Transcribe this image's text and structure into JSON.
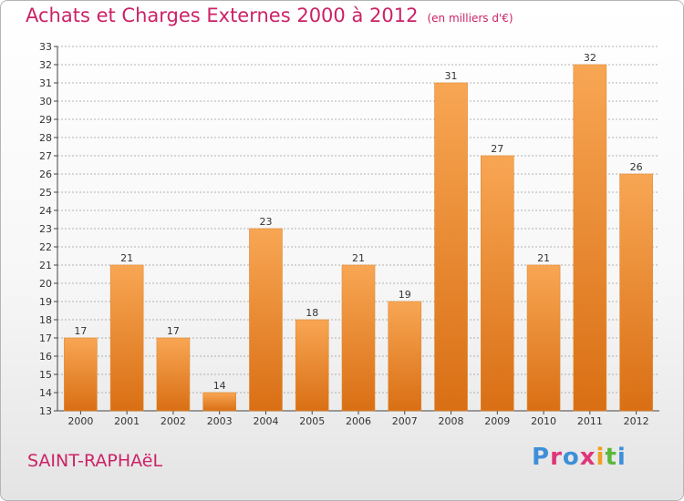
{
  "title": "Achats et Charges Externes 2000 à 2012",
  "unit_label": "(en milliers d'€)",
  "place_name": "SAINT-RAPHAëL",
  "logo": {
    "text": "Proxiti",
    "colors": [
      "#3f8fd8",
      "#e0357a",
      "#f0a020",
      "#5bb83a"
    ]
  },
  "colors": {
    "title": "#cc2266",
    "bar_top": "#f8a654",
    "bar_bottom": "#d96f14",
    "grid": "#9a9a9a"
  },
  "chart_data": {
    "type": "bar",
    "categories": [
      "2000",
      "2001",
      "2002",
      "2003",
      "2004",
      "2005",
      "2006",
      "2007",
      "2008",
      "2009",
      "2010",
      "2011",
      "2012"
    ],
    "values": [
      17,
      21,
      17,
      14,
      23,
      18,
      21,
      19,
      31,
      27,
      21,
      32,
      26
    ],
    "ylim": [
      13,
      33
    ],
    "yticks": [
      13,
      14,
      15,
      16,
      17,
      18,
      19,
      20,
      21,
      22,
      23,
      24,
      25,
      26,
      27,
      28,
      29,
      30,
      31,
      32,
      33
    ],
    "grid": true,
    "xlabel": "",
    "ylabel": ""
  }
}
